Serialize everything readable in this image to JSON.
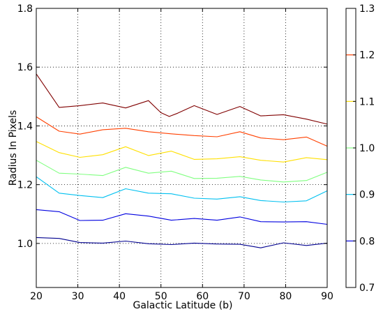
{
  "chart_data": {
    "type": "line",
    "xlabel": "Galactic Latitude (b)",
    "ylabel": "Radius In Pixels",
    "xlim": [
      20,
      90
    ],
    "ylim": [
      0.85,
      1.8
    ],
    "x_ticks": [
      "20",
      "30",
      "40",
      "50",
      "60",
      "70",
      "80",
      "90"
    ],
    "y_ticks": [
      "1.0",
      "1.2",
      "1.4",
      "1.6",
      "1.8"
    ],
    "grid": true,
    "grid_style": "dotted",
    "colorbar": {
      "range": [
        0.7,
        1.3
      ],
      "ticks": [
        "0.7",
        "0.8",
        "0.9",
        "1.0",
        "1.1",
        "1.2",
        "1.3"
      ],
      "levels": [
        {
          "value": 0.8,
          "color": "#0000e0"
        },
        {
          "value": 0.9,
          "color": "#00c0f0"
        },
        {
          "value": 1.0,
          "color": "#80ff80"
        },
        {
          "value": 1.1,
          "color": "#ffe000"
        },
        {
          "value": 1.2,
          "color": "#ff4000"
        }
      ]
    },
    "series": [
      {
        "color": "#00008f",
        "points": [
          [
            20,
            1.02
          ],
          [
            25.5,
            1.017
          ],
          [
            30.5,
            1.003
          ],
          [
            36,
            1.001
          ],
          [
            41.5,
            1.008
          ],
          [
            47,
            0.999
          ],
          [
            52.5,
            0.996
          ],
          [
            58,
            1.001
          ],
          [
            63.5,
            0.998
          ],
          [
            69,
            0.997
          ],
          [
            74,
            0.985
          ],
          [
            79.5,
            1.002
          ],
          [
            85,
            0.993
          ],
          [
            90,
            1.001
          ]
        ]
      },
      {
        "color": "#0000e0",
        "points": [
          [
            20,
            1.115
          ],
          [
            25.5,
            1.108
          ],
          [
            30.5,
            1.078
          ],
          [
            36,
            1.079
          ],
          [
            41.5,
            1.101
          ],
          [
            47,
            1.093
          ],
          [
            52.5,
            1.079
          ],
          [
            58,
            1.085
          ],
          [
            63.5,
            1.079
          ],
          [
            69,
            1.09
          ],
          [
            74,
            1.074
          ],
          [
            79.5,
            1.073
          ],
          [
            85,
            1.074
          ],
          [
            90,
            1.065
          ]
        ]
      },
      {
        "color": "#00c0f0",
        "points": [
          [
            20,
            1.227
          ],
          [
            25.5,
            1.171
          ],
          [
            30.5,
            1.163
          ],
          [
            36,
            1.156
          ],
          [
            41.5,
            1.186
          ],
          [
            47,
            1.171
          ],
          [
            52.5,
            1.169
          ],
          [
            58,
            1.154
          ],
          [
            63.5,
            1.151
          ],
          [
            69,
            1.159
          ],
          [
            74,
            1.146
          ],
          [
            79.5,
            1.141
          ],
          [
            85,
            1.145
          ],
          [
            90,
            1.179
          ]
        ]
      },
      {
        "color": "#80ff80",
        "points": [
          [
            20,
            1.283
          ],
          [
            25.5,
            1.239
          ],
          [
            30.5,
            1.236
          ],
          [
            36,
            1.231
          ],
          [
            41.5,
            1.259
          ],
          [
            47,
            1.239
          ],
          [
            52.5,
            1.246
          ],
          [
            58,
            1.221
          ],
          [
            63.5,
            1.222
          ],
          [
            69,
            1.228
          ],
          [
            74,
            1.216
          ],
          [
            79.5,
            1.209
          ],
          [
            85,
            1.214
          ],
          [
            90,
            1.242
          ]
        ]
      },
      {
        "color": "#ffe000",
        "points": [
          [
            20,
            1.347
          ],
          [
            25.5,
            1.309
          ],
          [
            30.5,
            1.293
          ],
          [
            36,
            1.302
          ],
          [
            41.5,
            1.329
          ],
          [
            47,
            1.299
          ],
          [
            52.5,
            1.314
          ],
          [
            58,
            1.286
          ],
          [
            63.5,
            1.288
          ],
          [
            69,
            1.295
          ],
          [
            74,
            1.283
          ],
          [
            79.5,
            1.277
          ],
          [
            85,
            1.292
          ],
          [
            90,
            1.285
          ]
        ]
      },
      {
        "color": "#ff4000",
        "points": [
          [
            20,
            1.431
          ],
          [
            25.5,
            1.382
          ],
          [
            30.5,
            1.372
          ],
          [
            36,
            1.387
          ],
          [
            41.5,
            1.392
          ],
          [
            47,
            1.38
          ],
          [
            52.5,
            1.373
          ],
          [
            58,
            1.367
          ],
          [
            63.5,
            1.363
          ],
          [
            69,
            1.38
          ],
          [
            74,
            1.359
          ],
          [
            79.5,
            1.353
          ],
          [
            85,
            1.362
          ],
          [
            90,
            1.331
          ]
        ]
      },
      {
        "color": "#800000",
        "points": [
          [
            20,
            1.577
          ],
          [
            25.5,
            1.463
          ],
          [
            30.5,
            1.469
          ],
          [
            36,
            1.478
          ],
          [
            41.5,
            1.461
          ],
          [
            47,
            1.486
          ],
          [
            50,
            1.445
          ],
          [
            52,
            1.432
          ],
          [
            54,
            1.443
          ],
          [
            58,
            1.469
          ],
          [
            63.5,
            1.439
          ],
          [
            69,
            1.466
          ],
          [
            74,
            1.434
          ],
          [
            79.5,
            1.438
          ],
          [
            85,
            1.423
          ],
          [
            90,
            1.406
          ]
        ]
      }
    ]
  }
}
